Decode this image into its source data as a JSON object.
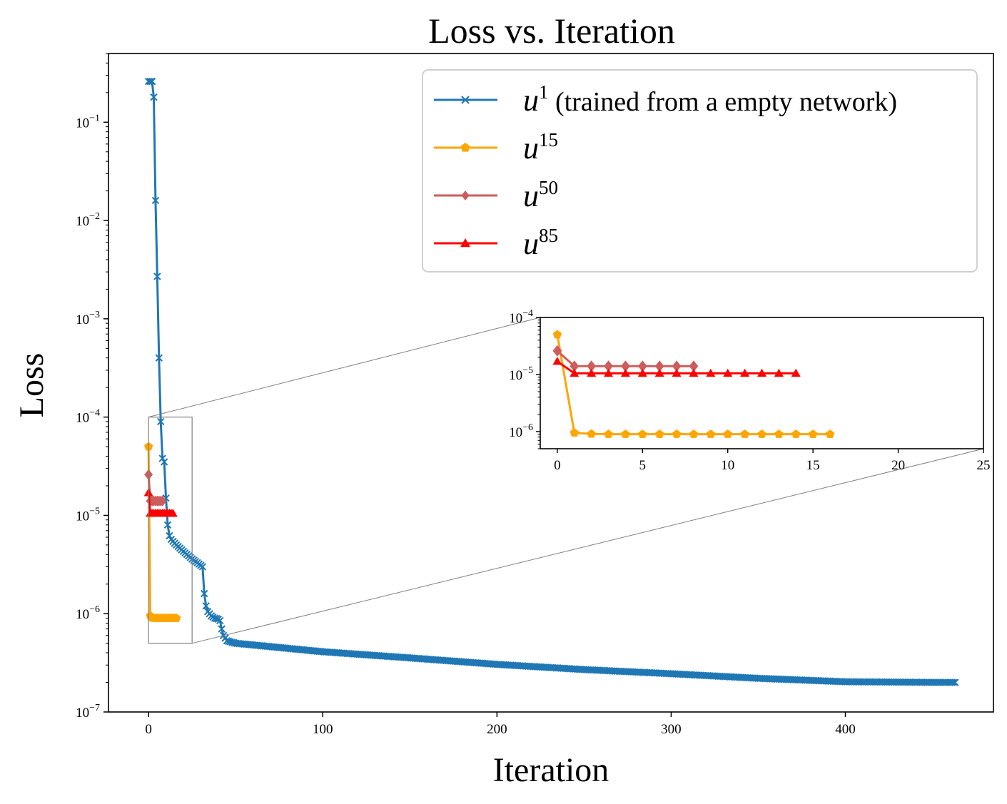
{
  "chart_data": {
    "type": "line",
    "title": "Loss vs. Iteration",
    "xlabel": "Iteration",
    "ylabel": "Loss",
    "yscale": "log",
    "xlim": [
      -23,
      485
    ],
    "ylim": [
      1e-07,
      0.5
    ],
    "xticks": [
      0,
      100,
      200,
      300,
      400
    ],
    "xtick_labels": [
      "0",
      "100",
      "200",
      "300",
      "400"
    ],
    "yticks": [
      1e-07,
      1e-06,
      1e-05,
      0.0001,
      0.001,
      0.01,
      0.1
    ],
    "ytick_labels": [
      {
        "base": "10",
        "exp": "−7"
      },
      {
        "base": "10",
        "exp": "−6"
      },
      {
        "base": "10",
        "exp": "−5"
      },
      {
        "base": "10",
        "exp": "−4"
      },
      {
        "base": "10",
        "exp": "−3"
      },
      {
        "base": "10",
        "exp": "−2"
      },
      {
        "base": "10",
        "exp": "−1"
      }
    ],
    "legend_position": "top-right",
    "series": [
      {
        "name": "u1",
        "legend_math": "u",
        "legend_sup": "1",
        "legend_text": " (trained from a empty network)",
        "color": "#1f77b4",
        "marker": "x",
        "anchors": [
          [
            0,
            0.26
          ],
          [
            1,
            0.26
          ],
          [
            2,
            0.26
          ],
          [
            3,
            0.18
          ],
          [
            4,
            0.016
          ],
          [
            5,
            0.0027
          ],
          [
            6,
            0.0004
          ],
          [
            7,
            9e-05
          ],
          [
            8,
            3.8e-05
          ],
          [
            9,
            3.5e-05
          ],
          [
            10,
            1.5e-05
          ],
          [
            11,
            8e-06
          ],
          [
            12,
            6.2e-06
          ],
          [
            13,
            5.7e-06
          ],
          [
            15,
            5.2e-06
          ],
          [
            20,
            4.3e-06
          ],
          [
            25,
            3.6e-06
          ],
          [
            28,
            3.3e-06
          ],
          [
            30,
            3.1e-06
          ],
          [
            31,
            3e-06
          ],
          [
            32,
            1.6e-06
          ],
          [
            33,
            1.2e-06
          ],
          [
            34,
            1.05e-06
          ],
          [
            36,
            9.5e-07
          ],
          [
            38,
            9e-07
          ],
          [
            40,
            8.8e-07
          ],
          [
            41,
            8.5e-07
          ],
          [
            42,
            7e-07
          ],
          [
            43,
            6e-07
          ],
          [
            45,
            5.3e-07
          ],
          [
            50,
            5e-07
          ],
          [
            100,
            4.1e-07
          ],
          [
            150,
            3.55e-07
          ],
          [
            200,
            3.05e-07
          ],
          [
            250,
            2.7e-07
          ],
          [
            300,
            2.45e-07
          ],
          [
            350,
            2.2e-07
          ],
          [
            400,
            2.03e-07
          ],
          [
            450,
            2e-07
          ],
          [
            463,
            2e-07
          ]
        ]
      },
      {
        "name": "u15",
        "legend_math": "u",
        "legend_sup": "15",
        "legend_text": "",
        "color": "#ffa500",
        "marker": "pentagon",
        "points": [
          [
            0,
            5e-05
          ],
          [
            1,
            9.5e-07
          ],
          [
            2,
            9.1e-07
          ],
          [
            3,
            9e-07
          ],
          [
            4,
            9e-07
          ],
          [
            5,
            9e-07
          ],
          [
            6,
            9e-07
          ],
          [
            7,
            9e-07
          ],
          [
            8,
            9e-07
          ],
          [
            9,
            9e-07
          ],
          [
            10,
            9e-07
          ],
          [
            11,
            9e-07
          ],
          [
            12,
            9e-07
          ],
          [
            13,
            9e-07
          ],
          [
            14,
            9e-07
          ],
          [
            15,
            9e-07
          ],
          [
            16,
            9e-07
          ]
        ]
      },
      {
        "name": "u50",
        "legend_math": "u",
        "legend_sup": "50",
        "legend_text": "",
        "color": "#cd5c5c",
        "marker": "diamond",
        "points": [
          [
            0,
            2.6e-05
          ],
          [
            1,
            1.4e-05
          ],
          [
            2,
            1.4e-05
          ],
          [
            3,
            1.4e-05
          ],
          [
            4,
            1.4e-05
          ],
          [
            5,
            1.4e-05
          ],
          [
            6,
            1.4e-05
          ],
          [
            7,
            1.4e-05
          ],
          [
            8,
            1.4e-05
          ]
        ]
      },
      {
        "name": "u85",
        "legend_math": "u",
        "legend_sup": "85",
        "legend_text": "",
        "color": "#ff0000",
        "marker": "triangle",
        "points": [
          [
            0,
            1.7e-05
          ],
          [
            1,
            1.05e-05
          ],
          [
            2,
            1.05e-05
          ],
          [
            3,
            1.05e-05
          ],
          [
            4,
            1.05e-05
          ],
          [
            5,
            1.05e-05
          ],
          [
            6,
            1.05e-05
          ],
          [
            7,
            1.05e-05
          ],
          [
            8,
            1.05e-05
          ],
          [
            9,
            1.05e-05
          ],
          [
            10,
            1.05e-05
          ],
          [
            11,
            1.05e-05
          ],
          [
            12,
            1.05e-05
          ],
          [
            13,
            1.05e-05
          ],
          [
            14,
            1.05e-05
          ]
        ]
      }
    ],
    "inset": {
      "xlim": [
        -1,
        25
      ],
      "ylim": [
        5e-07,
        0.0001
      ],
      "xticks": [
        0,
        5,
        10,
        15,
        20,
        25
      ],
      "xtick_labels": [
        "0",
        "5",
        "10",
        "15",
        "20",
        "25"
      ],
      "yticks": [
        1e-06,
        1e-05,
        0.0001
      ],
      "ytick_labels": [
        {
          "base": "10",
          "exp": "−6"
        },
        {
          "base": "10",
          "exp": "−5"
        },
        {
          "base": "10",
          "exp": "−4"
        }
      ],
      "zoom_region": {
        "x": [
          0,
          25
        ],
        "y": [
          5e-07,
          0.0001
        ]
      },
      "series": [
        "u15",
        "u50",
        "u85"
      ]
    }
  }
}
